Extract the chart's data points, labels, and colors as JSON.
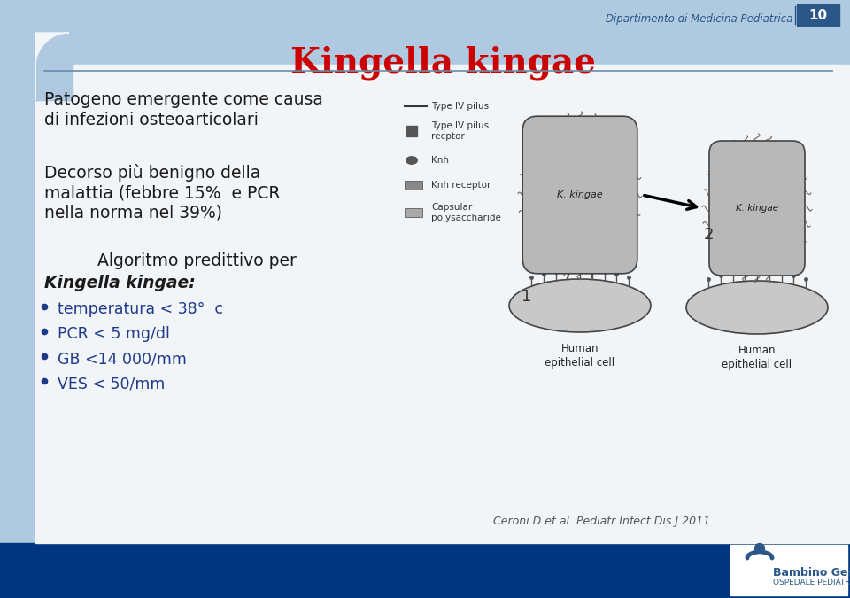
{
  "bg_color": "#afc9e1",
  "content_bg": "#f2f5f8",
  "title": "Kingella kingae",
  "title_color": "#cc0000",
  "header_text": "Dipartimento di Medicina Pediatrica",
  "header_number": "10",
  "header_text_color": "#2a5788",
  "header_num_bg": "#2a5788",
  "line_color": "#6a8caa",
  "body_text_color": "#1a1a1a",
  "bullet_color": "#1f3a8a",
  "para1_line1": "Patogeno emergente come causa",
  "para1_line2": "di infezioni osteoarticolari",
  "para2_line1": "Decorso più benigno della",
  "para2_line2": "malattia (febbre 15%  e PCR",
  "para2_line3": "nella norma nel 39%)",
  "algo_line1": "Algoritmo predittivo per",
  "algo_line2": "Kingella kingae:",
  "bullets": [
    "temperatura < 38°  c",
    "PCR < 5 mg/dl",
    "GB <14 000/mm",
    "VES < 50/mm"
  ],
  "citation": "Ceroni D et al. Pediatr Infect Dis J 2011",
  "bambino_gesu": "Bambino Gesù",
  "ospedale": "OSPEDALE PEDIATRICO",
  "footer_bg": "#003580",
  "logo_color": "#2a5788",
  "logo_light": "#4a7aaa"
}
